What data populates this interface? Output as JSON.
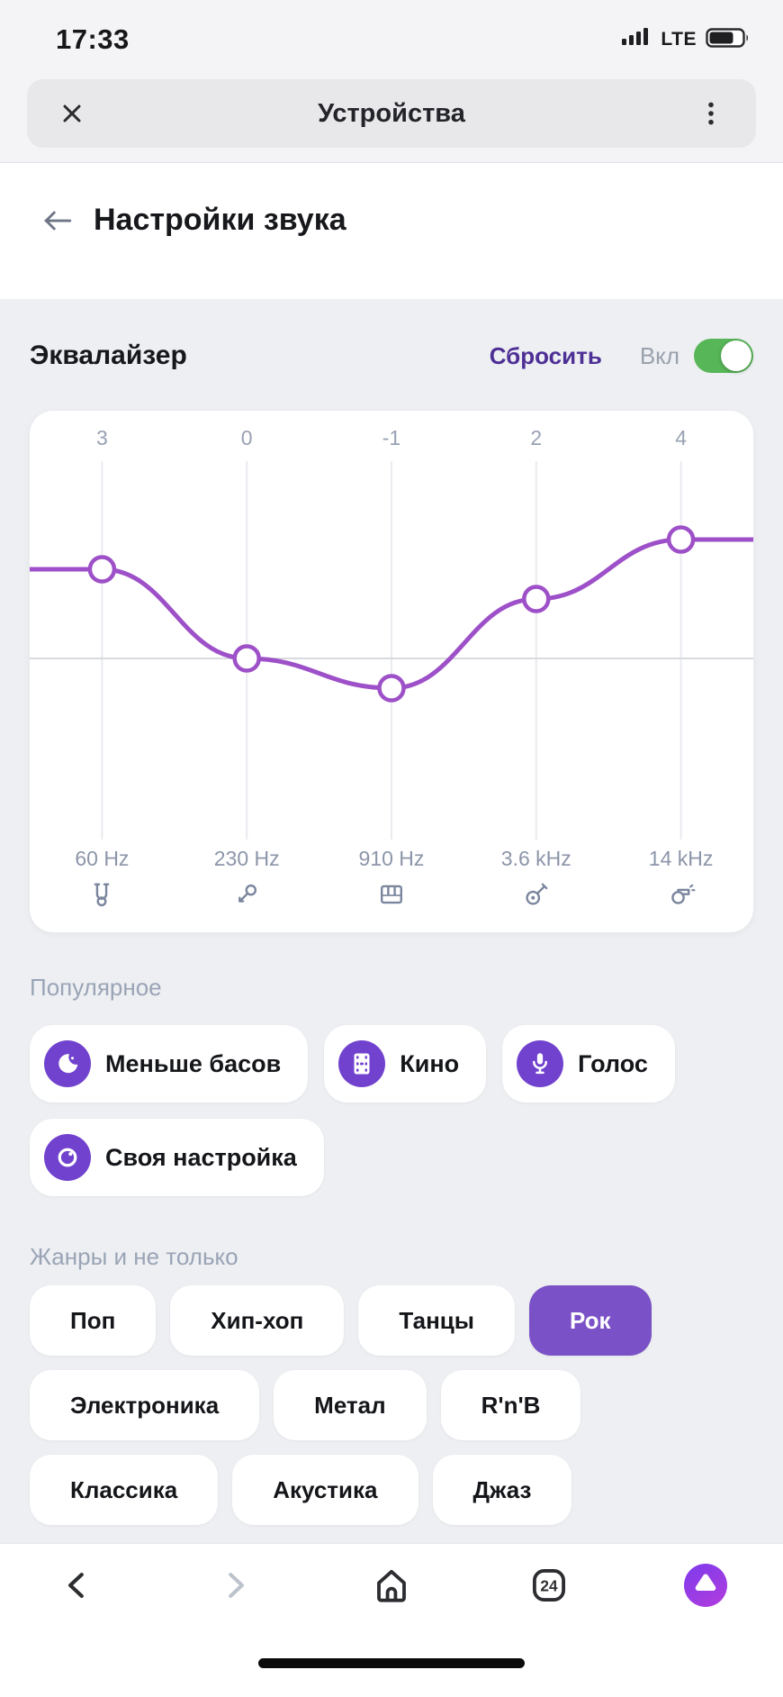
{
  "status_bar": {
    "time": "17:33",
    "network_label": "LTE",
    "battery_level": 0.65,
    "signal_bars": 4
  },
  "app_header": {
    "title": "Устройства"
  },
  "page_header": {
    "title": "Настройки звука"
  },
  "equalizer": {
    "title": "Эквалайзер",
    "reset_label": "Сбросить",
    "power_label": "Вкл",
    "power_state": "on"
  },
  "chart_data": {
    "type": "line",
    "title": "Эквалайзер",
    "categories": [
      "60 Hz",
      "230 Hz",
      "910 Hz",
      "3.6 kHz",
      "14 kHz"
    ],
    "values": [
      3,
      0,
      -1,
      2,
      4
    ],
    "gain_labels": [
      "3",
      "0",
      "-1",
      "2",
      "4"
    ],
    "band_icons": [
      "tuba-icon",
      "mic-handheld-icon",
      "piano-icon",
      "guitar-icon",
      "whistle-icon"
    ],
    "ylim": [
      -6.5,
      6.5
    ],
    "grid": "vertical",
    "zero_line": true,
    "line_color": "#9d50c8",
    "marker_fill": "#ffffff",
    "marker_stroke": "#9d50c8"
  },
  "popular": {
    "heading": "Популярное",
    "presets": [
      {
        "id": "less-bass",
        "label": "Меньше басов",
        "icon": "moon-icon"
      },
      {
        "id": "movies",
        "label": "Кино",
        "icon": "film-icon"
      },
      {
        "id": "voice",
        "label": "Голос",
        "icon": "microphone-icon"
      },
      {
        "id": "custom",
        "label": "Своя настройка",
        "icon": "dial-icon"
      }
    ]
  },
  "genres": {
    "heading": "Жанры и не только",
    "items": [
      {
        "id": "pop",
        "label": "Поп",
        "selected": false
      },
      {
        "id": "hip-hop",
        "label": "Хип-хоп",
        "selected": false
      },
      {
        "id": "dance",
        "label": "Танцы",
        "selected": false
      },
      {
        "id": "rock",
        "label": "Рок",
        "selected": true
      },
      {
        "id": "electronic",
        "label": "Электроника",
        "selected": false
      },
      {
        "id": "metal",
        "label": "Метал",
        "selected": false
      },
      {
        "id": "rnb",
        "label": "R'n'B",
        "selected": false
      },
      {
        "id": "classical",
        "label": "Классика",
        "selected": false
      },
      {
        "id": "acoustic",
        "label": "Акустика",
        "selected": false
      },
      {
        "id": "jazz",
        "label": "Джаз",
        "selected": false
      }
    ]
  },
  "bottom_nav": {
    "tab_count": "24"
  },
  "colors": {
    "accent_purple": "#9d50c8",
    "chip_icon_purple": "#7142ce",
    "selected_genre_purple": "#7b51c7",
    "toggle_green": "#57b657",
    "reset_purple": "#4e2f96"
  }
}
